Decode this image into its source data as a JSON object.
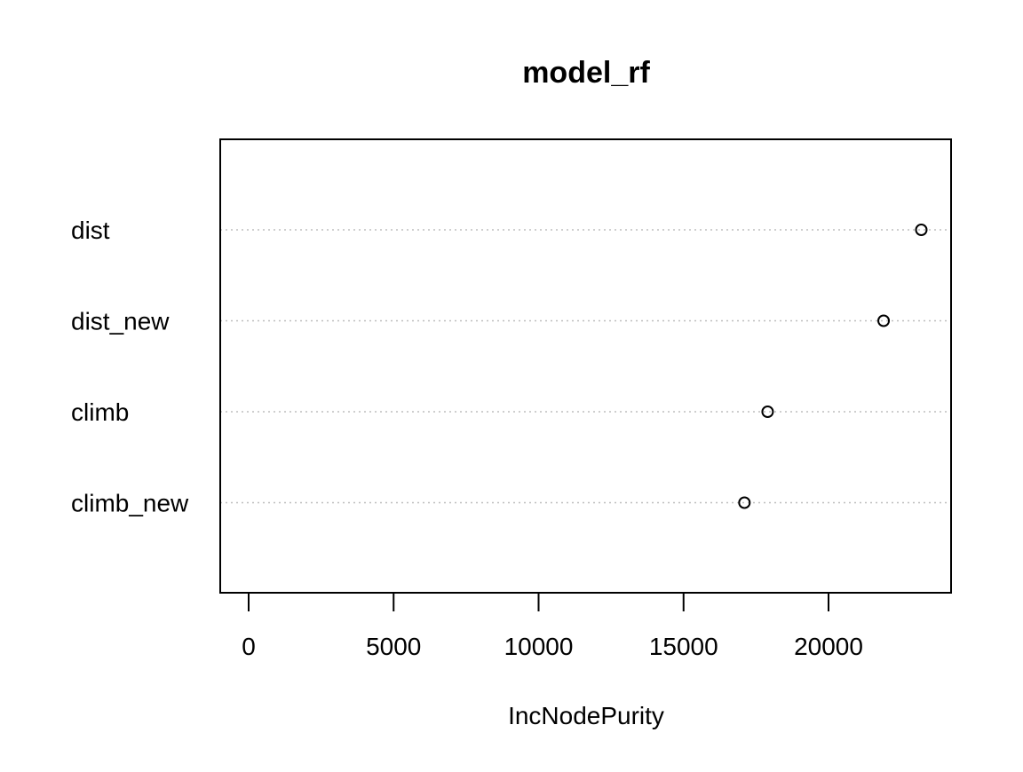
{
  "chart_data": {
    "type": "scatter",
    "subtype": "dotchart",
    "title": "model_rf",
    "xlabel": "IncNodePurity",
    "ylabel": "",
    "categories": [
      "dist",
      "dist_new",
      "climb",
      "climb_new"
    ],
    "values": [
      23200,
      21900,
      17900,
      17100
    ],
    "xlim": [
      -1000,
      24200
    ],
    "xticks": [
      0,
      5000,
      10000,
      15000,
      20000
    ],
    "xtick_labels": [
      "0",
      "5000",
      "10000",
      "15000",
      "20000"
    ],
    "grid": "horizontal-dotted",
    "colors": {
      "marker": "#000000",
      "gridline": "#bebebe",
      "frame": "#000000"
    }
  }
}
